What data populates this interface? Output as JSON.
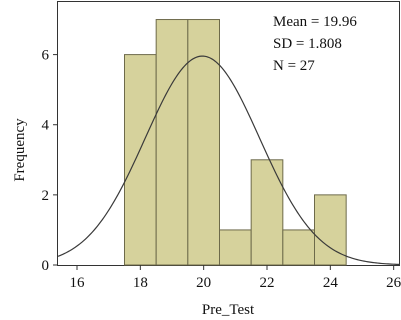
{
  "chart_data": {
    "type": "bar",
    "title": "",
    "xlabel": "Pre_Test",
    "ylabel": "Frequency",
    "xlim": [
      15.4,
      26.2
    ],
    "ylim": [
      0,
      7.5
    ],
    "x_ticks": [
      16,
      18,
      20,
      22,
      24,
      26
    ],
    "y_ticks": [
      0,
      2,
      4,
      6
    ],
    "bins": [
      {
        "start": 17.5,
        "end": 18.5,
        "count": 6
      },
      {
        "start": 18.5,
        "end": 19.5,
        "count": 7
      },
      {
        "start": 19.5,
        "end": 20.5,
        "count": 7
      },
      {
        "start": 20.5,
        "end": 21.5,
        "count": 1
      },
      {
        "start": 21.5,
        "end": 22.5,
        "count": 3
      },
      {
        "start": 22.5,
        "end": 23.5,
        "count": 1
      },
      {
        "start": 23.5,
        "end": 24.5,
        "count": 2
      }
    ],
    "normal_curve": {
      "mean": 19.96,
      "sd": 1.808,
      "n": 27,
      "bin_width": 1
    },
    "stats": {
      "mean_text": "Mean = 19.96",
      "sd_text": "SD = 1.808",
      "n_text": "N = 27"
    },
    "grid": false,
    "colors": {
      "bar_fill": "#d6d29c",
      "bar_stroke": "#6d6a4a",
      "curve": "#3a3a3a",
      "axis": "#333333"
    }
  }
}
